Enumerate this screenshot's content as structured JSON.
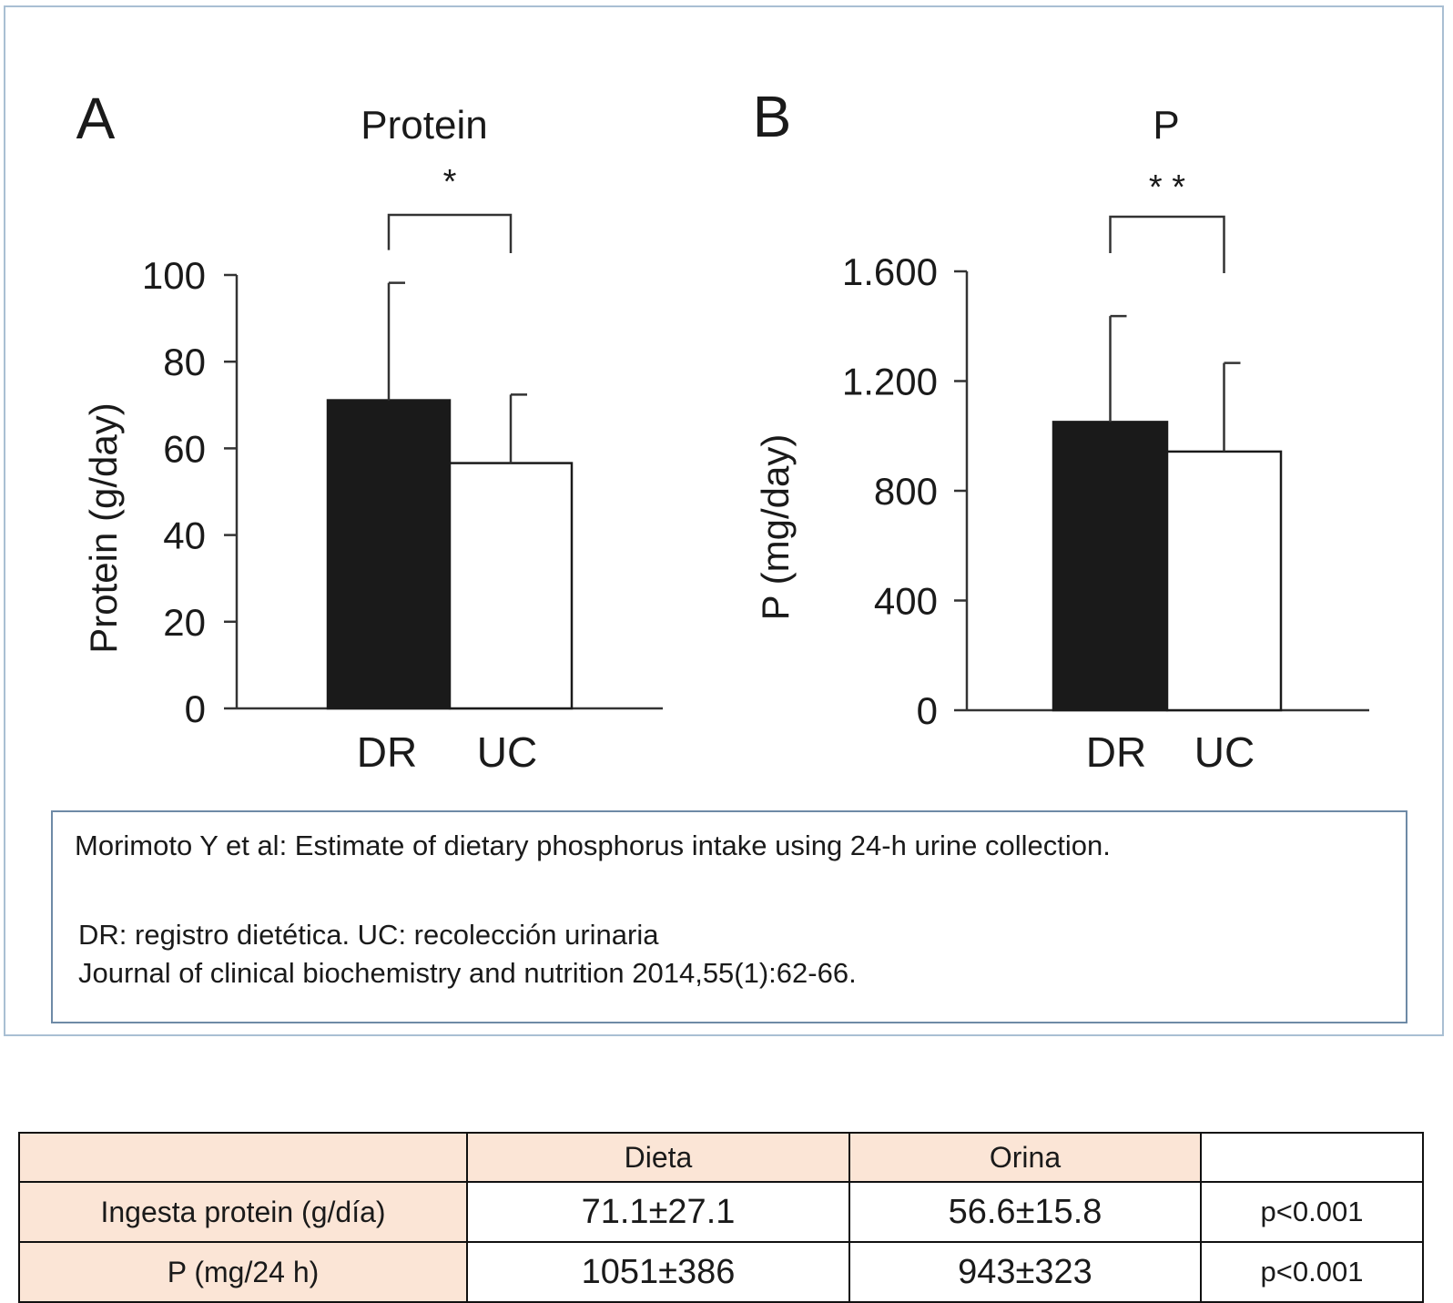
{
  "chart_data": [
    {
      "panel_label": "A",
      "type": "bar",
      "title": "Protein",
      "ylabel": "Protein (g/day)",
      "categories": [
        "DR",
        "UC"
      ],
      "values": [
        71.1,
        56.6
      ],
      "error": [
        27.1,
        15.8
      ],
      "bar_colors": [
        "#1a1a1a",
        "#ffffff"
      ],
      "ylim": [
        0,
        100
      ],
      "yticks": [
        0,
        20,
        40,
        60,
        80,
        100
      ],
      "ytick_labels": [
        "0",
        "20",
        "40",
        "60",
        "80",
        "100"
      ],
      "significance": "*"
    },
    {
      "panel_label": "B",
      "type": "bar",
      "title": "P",
      "ylabel": "P (mg/day)",
      "categories": [
        "DR",
        "UC"
      ],
      "values": [
        1051,
        943
      ],
      "error": [
        386,
        323
      ],
      "bar_colors": [
        "#1a1a1a",
        "#ffffff"
      ],
      "ylim": [
        0,
        1600
      ],
      "yticks": [
        0,
        400,
        800,
        1200,
        1600
      ],
      "ytick_labels": [
        "0",
        "400",
        "800",
        "1.200",
        "1.600"
      ],
      "significance": "* *"
    }
  ],
  "caption": {
    "line1": "Morimoto Y et al: Estimate of dietary phosphorus intake using 24-h urine collection.",
    "line2": "DR: registro dietética. UC: recolección urinaria",
    "line3": "Journal of clinical biochemistry and nutrition 2014,55(1):62-66."
  },
  "table": {
    "header": [
      "",
      "Dieta",
      "Orina",
      ""
    ],
    "rows": [
      {
        "label": "Ingesta protein (g/día)",
        "dieta": "71.1±27.1",
        "orina": "56.6±15.8",
        "p": "p<0.001"
      },
      {
        "label": "P (mg/24 h)",
        "dieta": "1051±386",
        "orina": "943±323",
        "p": "p<0.001"
      }
    ],
    "shade_color": "#fbe5d6"
  }
}
